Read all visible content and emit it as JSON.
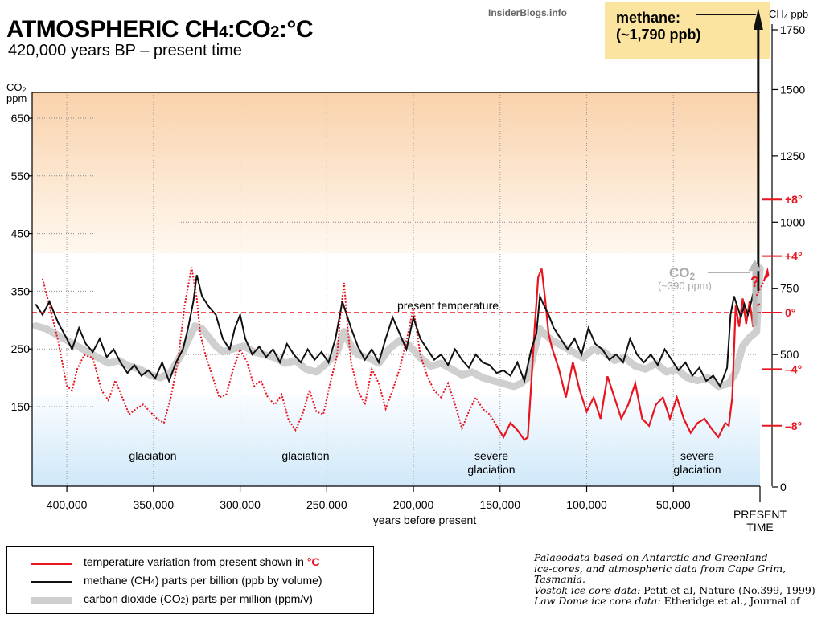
{
  "header": {
    "title_main": "ATMOSPHERIC CH",
    "title_sub1": "4",
    "title_mid": ":CO",
    "title_sub2": "2",
    "title_end": ":°C",
    "subtitle": "420,000 years BP – present time",
    "site": "InsiderBlogs.info"
  },
  "methane_callout": {
    "line1": "methane:",
    "line2": "(~1,790 ppb)"
  },
  "co2_callout": {
    "label": "CO",
    "label_sub": "2",
    "value": "(~390 ppm)"
  },
  "question_mark": "?",
  "axes": {
    "x_label": "years before present",
    "present_label_1": "PRESENT",
    "present_label_2": "TIME",
    "left_unit_1": "CO",
    "left_unit_sub": "2",
    "left_unit_2": "ppm",
    "right_unit_1": "CH",
    "right_unit_sub": "4",
    "right_unit_2": "ppb",
    "present_temperature": "present temperature"
  },
  "annotations": [
    {
      "text1": "glaciation",
      "text2": ""
    },
    {
      "text1": "glaciation",
      "text2": ""
    },
    {
      "text1": "severe",
      "text2": "glaciation"
    },
    {
      "text1": "severe",
      "text2": "glaciation"
    }
  ],
  "legend": {
    "temp_label": "temperature variation from present shown in",
    "temp_unit": "°C",
    "ch4_label_a": "methane (CH",
    "ch4_label_sub": "4",
    "ch4_label_b": ") parts per billion (ppb by volume)",
    "co2_label_a": "carbon dioxide (CO",
    "co2_label_sub": "2",
    "co2_label_b": ") parts per million (ppm/v)"
  },
  "credit": {
    "line1": "Palaeodata based on Antarctic and Greenland",
    "line2": "ice-cores, and atmospheric data from Cape Grim,",
    "line3": "Tasmania.",
    "line4a": "Vostok ice core data:",
    "line4b": " Petit et al, Nature (No.399, 1999)",
    "line5a": "Law Dome ice core data:",
    "line5b": " Etheridge et al., Journal of"
  },
  "colors": {
    "temperature": "#e8141e",
    "methane": "#111111",
    "co2": "#cfcfcf",
    "warm_band": "#fbd8b4",
    "cold_band": "#d2e9f8",
    "methane_box": "#fbe3a0"
  },
  "chart_data": {
    "type": "line",
    "title": "ATMOSPHERIC CH4:CO2:°C",
    "subtitle": "420,000 years BP – present time",
    "xlabel": "years before present",
    "x_reversed": true,
    "xlim": [
      420000,
      0
    ],
    "x_ticks": [
      400000,
      350000,
      300000,
      250000,
      200000,
      150000,
      100000,
      50000
    ],
    "x_tick_labels": [
      "400,000",
      "350,000",
      "300,000",
      "250,000",
      "200,000",
      "150,000",
      "100,000",
      "50,000"
    ],
    "y_axes": {
      "co2_ppm": {
        "label": "CO2 ppm",
        "ticks": [
          150,
          250,
          350,
          450,
          550,
          650
        ],
        "tick_labels": [
          "150",
          "250",
          "350",
          "450",
          "550",
          "650"
        ]
      },
      "ch4_ppb": {
        "label": "CH4 ppb",
        "ticks": [
          0,
          500,
          750,
          1000,
          1250,
          1500,
          1750
        ],
        "tick_labels": [
          "0",
          "500",
          "750",
          "1000",
          "1250",
          "1500",
          "1750"
        ],
        "range": [
          0,
          1750
        ]
      },
      "temperature_c": {
        "ticks": [
          8,
          4,
          0,
          -4,
          -8
        ],
        "tick_labels": [
          "+8°",
          "+4°",
          "0°",
          "–4°",
          "–8°"
        ]
      }
    },
    "reference_line": {
      "label": "present temperature",
      "temperature_c": 0
    },
    "series": [
      {
        "name": "temperature variation from present shown in °C",
        "axis": "temperature_c",
        "x": [
          414000,
          410000,
          405000,
          400000,
          397000,
          394000,
          390000,
          385000,
          380000,
          376000,
          372000,
          368000,
          364000,
          360000,
          356000,
          352000,
          348000,
          344000,
          340000,
          336000,
          332000,
          328000,
          325000,
          323000,
          320000,
          316000,
          312000,
          308000,
          304000,
          300000,
          296000,
          292000,
          288000,
          284000,
          280000,
          276000,
          272000,
          268000,
          264000,
          260000,
          256000,
          252000,
          248000,
          244000,
          242000,
          240000,
          238000,
          236000,
          232000,
          228000,
          224000,
          220000,
          216000,
          212000,
          208000,
          204000,
          200000,
          196000,
          192000,
          188000,
          184000,
          180000,
          176000,
          172000,
          168000,
          164000,
          160000,
          156000,
          152000,
          148000,
          144000,
          140000,
          136000,
          134000,
          132000,
          130000,
          128000,
          126000,
          124000,
          122000,
          120000,
          116000,
          112000,
          108000,
          104000,
          100000,
          96000,
          92000,
          88000,
          84000,
          80000,
          76000,
          72000,
          68000,
          64000,
          60000,
          56000,
          52000,
          48000,
          44000,
          40000,
          36000,
          32000,
          28000,
          24000,
          20000,
          18000,
          16000,
          14000,
          12000,
          10000,
          8000,
          6000,
          4000,
          2000,
          0
        ],
        "y": [
          2.4,
          0.5,
          -2.0,
          -5.2,
          -5.5,
          -4.0,
          -3.0,
          -3.2,
          -5.5,
          -6.2,
          -4.8,
          -6.0,
          -7.2,
          -6.8,
          -6.5,
          -7.0,
          -7.5,
          -7.8,
          -6.0,
          -3.5,
          0.5,
          3.2,
          1.0,
          -1.5,
          -3.0,
          -4.5,
          -6.0,
          -5.8,
          -4.0,
          -2.6,
          -3.5,
          -5.2,
          -4.8,
          -6.0,
          -6.5,
          -5.8,
          -7.6,
          -8.3,
          -7.2,
          -5.5,
          -7.0,
          -7.2,
          -5.0,
          -3.0,
          0.0,
          2.1,
          -1.0,
          -3.5,
          -5.5,
          -6.5,
          -4.0,
          -5.0,
          -6.8,
          -5.5,
          -4.0,
          -2.0,
          0.3,
          -3.0,
          -4.5,
          -5.5,
          -6.0,
          -5.0,
          -6.5,
          -8.2,
          -7.0,
          -6.0,
          -6.8,
          -7.2,
          -8.0,
          -8.8,
          -7.8,
          -8.3,
          -9.0,
          -8.8,
          -5.0,
          -1.0,
          2.5,
          3.1,
          1.0,
          -1.5,
          -2.5,
          -4.0,
          -6.0,
          -3.5,
          -5.5,
          -7.0,
          -6.0,
          -7.5,
          -4.5,
          -6.0,
          -7.5,
          -6.5,
          -5.0,
          -7.5,
          -8.0,
          -6.5,
          -6.0,
          -7.5,
          -6.0,
          -7.5,
          -8.5,
          -7.8,
          -7.5,
          -8.2,
          -8.8,
          -7.8,
          -8.0,
          -6.0,
          0.5,
          -1.0,
          1.0,
          -0.8,
          0.8,
          -1.0,
          0.5,
          0.6
        ]
      },
      {
        "name": "methane (CH4) parts per billion (ppb by volume)",
        "axis": "ch4_ppb",
        "x": [
          418000,
          414000,
          410000,
          405000,
          400000,
          397000,
          393000,
          389000,
          385000,
          381000,
          377000,
          373000,
          369000,
          365000,
          361000,
          357000,
          353000,
          349000,
          345000,
          341000,
          337000,
          333000,
          330000,
          327000,
          325000,
          322000,
          318000,
          314000,
          310000,
          306000,
          303000,
          300000,
          297000,
          293000,
          289000,
          285000,
          281000,
          277000,
          273000,
          269000,
          265000,
          261000,
          257000,
          253000,
          249000,
          245000,
          241000,
          238000,
          236000,
          232000,
          228000,
          224000,
          220000,
          216000,
          212000,
          208000,
          204000,
          200000,
          196000,
          192000,
          188000,
          184000,
          180000,
          176000,
          172000,
          168000,
          164000,
          160000,
          156000,
          152000,
          148000,
          144000,
          140000,
          136000,
          132000,
          129000,
          127000,
          125000,
          122000,
          119000,
          115000,
          111000,
          107000,
          103000,
          99000,
          95000,
          91000,
          87000,
          83000,
          79000,
          75000,
          71000,
          67000,
          63000,
          59000,
          55000,
          51000,
          47000,
          43000,
          39000,
          35000,
          31000,
          27000,
          23000,
          19000,
          17000,
          15000,
          13000,
          11000,
          9000,
          7000,
          5000,
          3000,
          1000
        ],
        "y": [
          690,
          650,
          700,
          620,
          560,
          520,
          600,
          540,
          510,
          560,
          490,
          520,
          470,
          430,
          460,
          420,
          440,
          410,
          470,
          400,
          470,
          520,
          600,
          700,
          800,
          720,
          680,
          650,
          560,
          520,
          600,
          650,
          560,
          500,
          530,
          490,
          520,
          470,
          540,
          500,
          470,
          520,
          480,
          510,
          470,
          560,
          700,
          640,
          600,
          530,
          480,
          520,
          470,
          560,
          640,
          580,
          520,
          640,
          560,
          520,
          480,
          500,
          460,
          520,
          480,
          450,
          500,
          470,
          460,
          430,
          440,
          420,
          470,
          400,
          520,
          580,
          720,
          690,
          650,
          600,
          560,
          520,
          560,
          500,
          600,
          540,
          520,
          480,
          500,
          470,
          560,
          500,
          470,
          500,
          460,
          520,
          480,
          440,
          470,
          420,
          450,
          400,
          420,
          380,
          450,
          650,
          720,
          680,
          640,
          690,
          650,
          700,
          760,
          1790
        ]
      },
      {
        "name": "carbon dioxide (CO2) parts per million (ppm/v)",
        "axis": "co2_ppm",
        "x": [
          418000,
          412000,
          406000,
          400000,
          394000,
          388000,
          382000,
          376000,
          370000,
          364000,
          358000,
          352000,
          346000,
          340000,
          334000,
          330000,
          326000,
          322000,
          318000,
          314000,
          310000,
          304000,
          298000,
          292000,
          286000,
          280000,
          274000,
          268000,
          262000,
          256000,
          250000,
          244000,
          240000,
          236000,
          232000,
          226000,
          220000,
          214000,
          208000,
          202000,
          196000,
          190000,
          184000,
          178000,
          172000,
          166000,
          160000,
          154000,
          148000,
          142000,
          138000,
          134000,
          130000,
          127000,
          124000,
          120000,
          114000,
          108000,
          102000,
          96000,
          90000,
          84000,
          78000,
          72000,
          66000,
          60000,
          54000,
          48000,
          42000,
          36000,
          30000,
          24000,
          18000,
          14000,
          10000,
          6000,
          2000,
          0
        ],
        "y": [
          290,
          285,
          275,
          265,
          255,
          245,
          235,
          225,
          230,
          220,
          215,
          205,
          200,
          210,
          240,
          265,
          290,
          285,
          270,
          255,
          245,
          250,
          255,
          245,
          240,
          235,
          225,
          230,
          215,
          210,
          225,
          245,
          280,
          255,
          240,
          235,
          225,
          250,
          265,
          255,
          235,
          220,
          225,
          215,
          205,
          210,
          200,
          195,
          190,
          185,
          190,
          200,
          250,
          285,
          275,
          265,
          255,
          245,
          235,
          250,
          245,
          230,
          235,
          220,
          215,
          225,
          210,
          215,
          200,
          195,
          200,
          185,
          190,
          210,
          255,
          270,
          280,
          390
        ]
      }
    ]
  }
}
